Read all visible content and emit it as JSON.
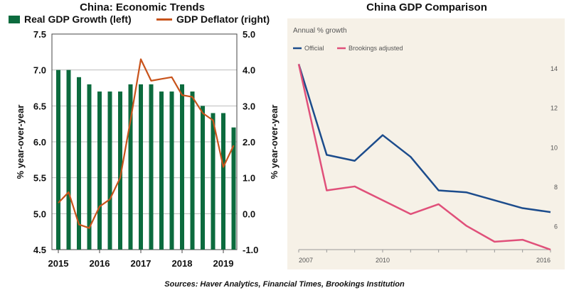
{
  "left": {
    "title": "China: Economic Trends",
    "legend": {
      "bar": "Real GDP Growth (left)",
      "line": "GDP Deflator (right)"
    },
    "colors": {
      "bar": "#0c6b3e",
      "line": "#c8531b"
    },
    "ylabel_left": "% year-over-year",
    "ylabel_right": "% year-over-year"
  },
  "right": {
    "title": "China GDP Comparison",
    "subtitle": "Annual % growth",
    "legend": {
      "official": "Official",
      "adjusted": "Brookings adjusted"
    },
    "colors": {
      "official": "#1c4c8c",
      "adjusted": "#e0507a",
      "background": "#f6f1e7"
    }
  },
  "source": "Sources: Haver Analytics, Financial Times, Brookings Institution",
  "chart_data": [
    {
      "type": "bar",
      "title": "China: Economic Trends",
      "xlabel": "",
      "ylabel": "% year-over-year",
      "x_ticks": [
        "2015",
        "2016",
        "2017",
        "2018",
        "2019"
      ],
      "ylim": [
        4.5,
        7.5
      ],
      "y_ticks": [
        "4.5",
        "5.0",
        "5.5",
        "6.0",
        "6.5",
        "7.0",
        "7.5"
      ],
      "y2lim": [
        -1.0,
        5.0
      ],
      "y2_ticks": [
        "-1.0",
        "0.0",
        "1.0",
        "2.0",
        "3.0",
        "4.0",
        "5.0"
      ],
      "grid": true,
      "series": [
        {
          "name": "Real GDP Growth (left)",
          "type": "bar",
          "axis": "left",
          "x": [
            2015.0,
            2015.25,
            2015.5,
            2015.75,
            2016.0,
            2016.25,
            2016.5,
            2016.75,
            2017.0,
            2017.25,
            2017.5,
            2017.75,
            2018.0,
            2018.25,
            2018.5,
            2018.75,
            2019.0,
            2019.25
          ],
          "values": [
            7.0,
            7.0,
            6.9,
            6.8,
            6.7,
            6.7,
            6.7,
            6.8,
            6.8,
            6.8,
            6.7,
            6.7,
            6.8,
            6.7,
            6.5,
            6.4,
            6.4,
            6.2
          ]
        },
        {
          "name": "GDP Deflator (right)",
          "type": "line",
          "axis": "right",
          "x": [
            2015.0,
            2015.25,
            2015.5,
            2015.75,
            2016.0,
            2016.25,
            2016.5,
            2016.75,
            2017.0,
            2017.25,
            2017.5,
            2017.75,
            2018.0,
            2018.25,
            2018.5,
            2018.75,
            2019.0,
            2019.25
          ],
          "values": [
            0.3,
            0.6,
            -0.3,
            -0.4,
            0.2,
            0.4,
            1.0,
            2.6,
            4.3,
            3.7,
            3.75,
            3.8,
            3.3,
            3.25,
            2.8,
            2.6,
            1.3,
            1.9
          ]
        }
      ]
    },
    {
      "type": "line",
      "title": "China GDP Comparison",
      "subtitle": "Annual % growth",
      "x_ticks": [
        "2007",
        "2010",
        "2016"
      ],
      "ylim": [
        4.8,
        14.5
      ],
      "y_ticks": [
        "6",
        "8",
        "10",
        "12",
        "14"
      ],
      "grid": false,
      "series": [
        {
          "name": "Official",
          "x": [
            2007,
            2008,
            2009,
            2010,
            2011,
            2012,
            2013,
            2014,
            2015,
            2016
          ],
          "values": [
            14.2,
            9.6,
            9.3,
            10.6,
            9.5,
            7.8,
            7.7,
            7.3,
            6.9,
            6.7
          ]
        },
        {
          "name": "Brookings adjusted",
          "x": [
            2007,
            2008,
            2009,
            2010,
            2011,
            2012,
            2013,
            2014,
            2015,
            2016
          ],
          "values": [
            14.2,
            7.8,
            8.0,
            7.3,
            6.6,
            7.1,
            6.0,
            5.2,
            5.3,
            4.8
          ]
        }
      ]
    }
  ]
}
